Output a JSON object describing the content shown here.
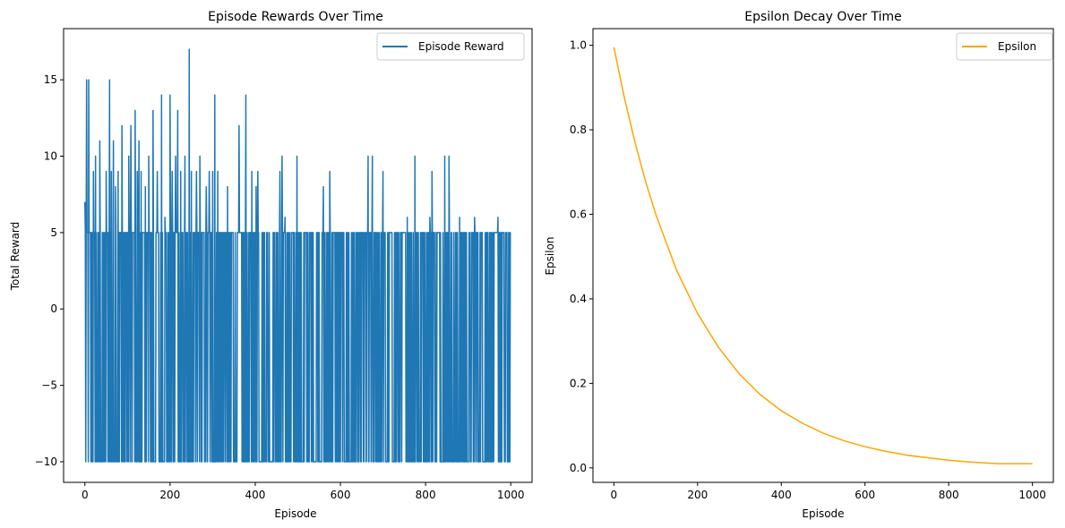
{
  "chart_data": [
    {
      "type": "line",
      "title": "Episode Rewards Over Time",
      "xlabel": "Episode",
      "ylabel": "Total Reward",
      "xlim": [
        -50,
        1050
      ],
      "ylim": [
        -11.35,
        18.35
      ],
      "xticks": [
        0,
        200,
        400,
        600,
        800,
        1000
      ],
      "xtick_labels": [
        "0",
        "200",
        "400",
        "600",
        "800",
        "1000"
      ],
      "yticks": [
        -10,
        -5,
        0,
        5,
        10,
        15
      ],
      "ytick_labels": [
        "−10",
        "−5",
        "0",
        "5",
        "10",
        "15"
      ],
      "legend": "top-right",
      "grid": false,
      "series": [
        {
          "name": "Episode Reward",
          "color": "#1f77b4",
          "description": "1000 episodes oscillating densely between -10 and 5, with spikes above 5",
          "baseline_range": [
            -10,
            5
          ],
          "spikes": [
            {
              "x": 0,
              "y": 7
            },
            {
              "x": 4,
              "y": 15
            },
            {
              "x": 9,
              "y": 15
            },
            {
              "x": 20,
              "y": 9
            },
            {
              "x": 25,
              "y": 10
            },
            {
              "x": 35,
              "y": 11
            },
            {
              "x": 50,
              "y": 9
            },
            {
              "x": 58,
              "y": 15
            },
            {
              "x": 62,
              "y": 9
            },
            {
              "x": 67,
              "y": 11
            },
            {
              "x": 72,
              "y": 8
            },
            {
              "x": 78,
              "y": 9
            },
            {
              "x": 87,
              "y": 12
            },
            {
              "x": 103,
              "y": 10
            },
            {
              "x": 108,
              "y": 12
            },
            {
              "x": 118,
              "y": 13
            },
            {
              "x": 123,
              "y": 9
            },
            {
              "x": 127,
              "y": 11
            },
            {
              "x": 132,
              "y": 9
            },
            {
              "x": 142,
              "y": 8
            },
            {
              "x": 150,
              "y": 10
            },
            {
              "x": 160,
              "y": 13
            },
            {
              "x": 170,
              "y": 9
            },
            {
              "x": 180,
              "y": 14
            },
            {
              "x": 188,
              "y": 6
            },
            {
              "x": 200,
              "y": 14
            },
            {
              "x": 205,
              "y": 9
            },
            {
              "x": 213,
              "y": 10
            },
            {
              "x": 218,
              "y": 13
            },
            {
              "x": 225,
              "y": 9
            },
            {
              "x": 235,
              "y": 10
            },
            {
              "x": 245,
              "y": 17
            },
            {
              "x": 250,
              "y": 9
            },
            {
              "x": 262,
              "y": 9
            },
            {
              "x": 270,
              "y": 10
            },
            {
              "x": 285,
              "y": 8
            },
            {
              "x": 292,
              "y": 9
            },
            {
              "x": 300,
              "y": 9
            },
            {
              "x": 305,
              "y": 14
            },
            {
              "x": 312,
              "y": 9
            },
            {
              "x": 335,
              "y": 8
            },
            {
              "x": 362,
              "y": 12
            },
            {
              "x": 378,
              "y": 14
            },
            {
              "x": 392,
              "y": 9
            },
            {
              "x": 402,
              "y": 8
            },
            {
              "x": 406,
              "y": 9
            },
            {
              "x": 458,
              "y": 9
            },
            {
              "x": 463,
              "y": 10
            },
            {
              "x": 470,
              "y": 6
            },
            {
              "x": 498,
              "y": 10
            },
            {
              "x": 560,
              "y": 8
            },
            {
              "x": 575,
              "y": 9
            },
            {
              "x": 665,
              "y": 10
            },
            {
              "x": 675,
              "y": 10
            },
            {
              "x": 700,
              "y": 9
            },
            {
              "x": 757,
              "y": 6
            },
            {
              "x": 775,
              "y": 10
            },
            {
              "x": 810,
              "y": 6
            },
            {
              "x": 815,
              "y": 9
            },
            {
              "x": 845,
              "y": 10
            },
            {
              "x": 855,
              "y": 10
            },
            {
              "x": 880,
              "y": 6
            },
            {
              "x": 915,
              "y": 6
            },
            {
              "x": 970,
              "y": 6
            }
          ]
        }
      ]
    },
    {
      "type": "line",
      "title": "Epsilon Decay Over Time",
      "xlabel": "Episode",
      "ylabel": "Epsilon",
      "xlim": [
        -50,
        1050
      ],
      "ylim": [
        -0.0343,
        1.0393
      ],
      "xticks": [
        0,
        200,
        400,
        600,
        800,
        1000
      ],
      "xtick_labels": [
        "0",
        "200",
        "400",
        "600",
        "800",
        "1000"
      ],
      "yticks": [
        0.0,
        0.2,
        0.4,
        0.6,
        0.8,
        1.0
      ],
      "ytick_labels": [
        "0.0",
        "0.2",
        "0.4",
        "0.6",
        "0.8",
        "1.0"
      ],
      "legend": "top-right",
      "grid": false,
      "series": [
        {
          "name": "Epsilon",
          "color": "#ffa500",
          "x": [
            0,
            25,
            50,
            75,
            100,
            150,
            200,
            250,
            300,
            350,
            400,
            450,
            500,
            550,
            600,
            650,
            700,
            750,
            800,
            850,
            900,
            920,
            950,
            1000
          ],
          "y": [
            0.995,
            0.876,
            0.772,
            0.68,
            0.6,
            0.467,
            0.365,
            0.285,
            0.222,
            0.173,
            0.135,
            0.106,
            0.082,
            0.064,
            0.05,
            0.039,
            0.03,
            0.024,
            0.018,
            0.014,
            0.011,
            0.01,
            0.01,
            0.01
          ]
        }
      ]
    }
  ]
}
